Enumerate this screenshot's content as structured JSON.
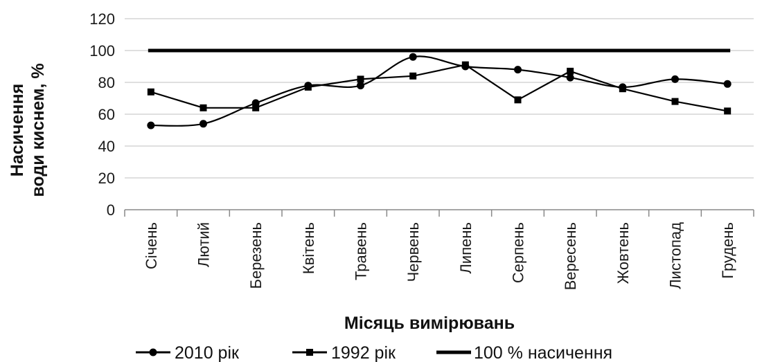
{
  "chart_data": {
    "type": "line",
    "title": "",
    "xlabel": "Місяць вимірювань",
    "ylabel_lines": [
      "Насичення",
      "води киснем, %"
    ],
    "ylim": [
      0,
      120
    ],
    "yticks": [
      0,
      20,
      40,
      60,
      80,
      100,
      120
    ],
    "grid": "horizontal",
    "legend_position": "bottom",
    "categories": [
      "Січень",
      "Лютий",
      "Березень",
      "Квітень",
      "Травень",
      "Червень",
      "Липень",
      "Серпень",
      "Вересень",
      "Жовтень",
      "Листопад",
      "Грудень"
    ],
    "series": [
      {
        "name": "2010 рік",
        "marker": "circle",
        "smooth": true,
        "values": [
          53,
          54,
          67,
          78,
          78,
          96,
          90,
          88,
          83,
          77,
          82,
          79
        ]
      },
      {
        "name": "1992 рік",
        "marker": "square",
        "smooth": false,
        "values": [
          74,
          64,
          64,
          77,
          82,
          84,
          91,
          69,
          87,
          76,
          68,
          62
        ]
      },
      {
        "name": "100 % насичення",
        "marker": "none",
        "smooth": false,
        "values": [
          100,
          100,
          100,
          100,
          100,
          100,
          100,
          100,
          100,
          100,
          100,
          100
        ]
      }
    ],
    "colors": {
      "line": "#000000",
      "grid": "#bfbfbf",
      "axis": "#888888"
    }
  }
}
